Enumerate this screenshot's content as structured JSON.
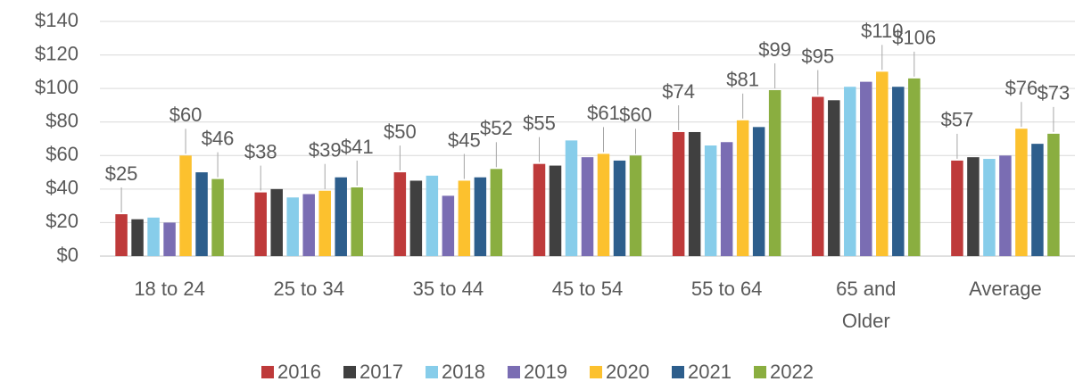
{
  "chart_data": {
    "type": "bar",
    "categories": [
      "18 to 24",
      "25 to 34",
      "35 to 44",
      "45 to 54",
      "55 to 64",
      "65 and\nOlder",
      "Average"
    ],
    "series": [
      {
        "name": "2016",
        "color": "#be3a3a",
        "values": [
          25,
          38,
          50,
          55,
          74,
          95,
          57
        ],
        "value_labels": [
          "$25",
          "$38",
          "$50",
          "$55",
          "$74",
          "$95",
          "$57"
        ]
      },
      {
        "name": "2017",
        "color": "#404040",
        "values": [
          22,
          40,
          45,
          54,
          74,
          93,
          59
        ]
      },
      {
        "name": "2018",
        "color": "#87cdea",
        "values": [
          23,
          35,
          48,
          69,
          66,
          101,
          58
        ]
      },
      {
        "name": "2019",
        "color": "#7a6db3",
        "values": [
          20,
          37,
          36,
          59,
          68,
          104,
          60
        ]
      },
      {
        "name": "2020",
        "color": "#fcc12e",
        "values": [
          60,
          39,
          45,
          61,
          81,
          110,
          76
        ],
        "value_labels": [
          "$60",
          "$39",
          "$45",
          "$61",
          "$81",
          "$110",
          "$76"
        ]
      },
      {
        "name": "2021",
        "color": "#2d5e8c",
        "values": [
          50,
          47,
          47,
          57,
          77,
          101,
          67
        ]
      },
      {
        "name": "2022",
        "color": "#8aae40",
        "values": [
          46,
          41,
          52,
          60,
          99,
          106,
          73
        ],
        "value_labels": [
          "$46",
          "$41",
          "$52",
          "$60",
          "$99",
          "$106",
          "$73"
        ]
      }
    ],
    "ylim": [
      0,
      140
    ],
    "yticks": [
      {
        "value": 0,
        "label": "$0"
      },
      {
        "value": 20,
        "label": "$20"
      },
      {
        "value": 40,
        "label": "$40"
      },
      {
        "value": 60,
        "label": "$60"
      },
      {
        "value": 80,
        "label": "$80"
      },
      {
        "value": 100,
        "label": "$100"
      },
      {
        "value": 120,
        "label": "$120"
      },
      {
        "value": 140,
        "label": "$140"
      }
    ],
    "grid": true,
    "legend": "bottom"
  }
}
